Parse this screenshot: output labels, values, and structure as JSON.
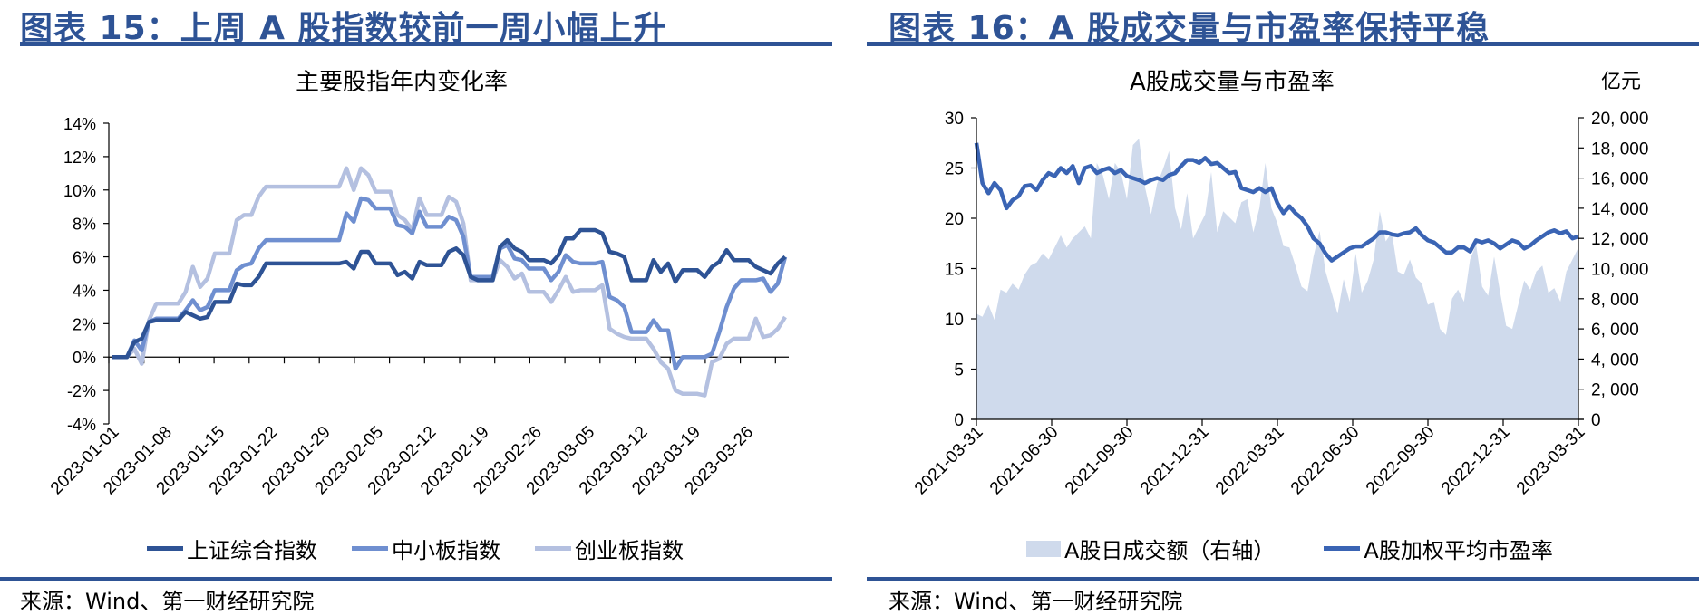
{
  "left": {
    "figure_title": "图表 15：上周 A 股指数较前一周小幅上升",
    "chart_title": "主要股指年内变化率",
    "source": "来源：Wind、第一财经研究院",
    "legend": [
      {
        "label": "上证综合指数",
        "color": "#2e5395"
      },
      {
        "label": "中小板指数",
        "color": "#6f8fd0"
      },
      {
        "label": "创业板指数",
        "color": "#b4c0e0"
      }
    ]
  },
  "right": {
    "figure_title": "图表 16：A 股成交量与市盈率保持平稳",
    "chart_title": "A股成交量与市盈率",
    "unit_label": "亿元",
    "source": "来源：Wind、第一财经研究院",
    "legend": [
      {
        "label": "A股日成交额（右轴）",
        "color": "#cfdaec",
        "kind": "area"
      },
      {
        "label": "A股加权平均市盈率",
        "color": "#3a64b4",
        "kind": "line"
      }
    ]
  },
  "chart_data": [
    {
      "type": "line",
      "title": "主要股指年内变化率",
      "xlabel": "",
      "ylabel": "",
      "ylim": [
        -0.04,
        0.14
      ],
      "yticks": [
        "14%",
        "12%",
        "10%",
        "8%",
        "6%",
        "4%",
        "2%",
        "0%",
        "-2%",
        "-4%"
      ],
      "x_tick_labels": [
        "2023-01-01",
        "2023-01-08",
        "2023-01-15",
        "2023-01-22",
        "2023-01-29",
        "2023-02-05",
        "2023-02-12",
        "2023-02-19",
        "2023-02-26",
        "2023-03-05",
        "2023-03-12",
        "2023-03-19",
        "2023-03-26"
      ],
      "legend_position": "bottom",
      "grid": false,
      "series": [
        {
          "name": "上证综合指数",
          "color": "#2e5395",
          "values": [
            0.0,
            0.0,
            0.0,
            0.009,
            0.011,
            0.021,
            0.022,
            0.022,
            0.022,
            0.022,
            0.027,
            0.025,
            0.023,
            0.024,
            0.033,
            0.033,
            0.033,
            0.044,
            0.043,
            0.043,
            0.048,
            0.056,
            0.056,
            0.056,
            0.056,
            0.056,
            0.056,
            0.056,
            0.056,
            0.056,
            0.056,
            0.056,
            0.057,
            0.053,
            0.063,
            0.063,
            0.056,
            0.056,
            0.056,
            0.049,
            0.051,
            0.047,
            0.057,
            0.055,
            0.055,
            0.055,
            0.063,
            0.065,
            0.061,
            0.048,
            0.046,
            0.046,
            0.046,
            0.066,
            0.07,
            0.065,
            0.063,
            0.058,
            0.058,
            0.058,
            0.056,
            0.061,
            0.071,
            0.071,
            0.076,
            0.076,
            0.076,
            0.074,
            0.063,
            0.062,
            0.06,
            0.046,
            0.046,
            0.046,
            0.058,
            0.051,
            0.056,
            0.045,
            0.052,
            0.052,
            0.052,
            0.048,
            0.054,
            0.057,
            0.064,
            0.058,
            0.058,
            0.058,
            0.054,
            0.052,
            0.05,
            0.056,
            0.06
          ]
        },
        {
          "name": "中小板指数",
          "color": "#6f8fd0",
          "values": [
            0.0,
            0.0,
            0.0,
            0.01,
            0.004,
            0.021,
            0.023,
            0.023,
            0.023,
            0.023,
            0.028,
            0.034,
            0.028,
            0.03,
            0.04,
            0.04,
            0.04,
            0.052,
            0.055,
            0.056,
            0.065,
            0.07,
            0.07,
            0.07,
            0.07,
            0.07,
            0.07,
            0.07,
            0.07,
            0.07,
            0.07,
            0.07,
            0.086,
            0.081,
            0.095,
            0.094,
            0.089,
            0.089,
            0.089,
            0.079,
            0.078,
            0.074,
            0.087,
            0.078,
            0.078,
            0.078,
            0.084,
            0.082,
            0.072,
            0.048,
            0.048,
            0.048,
            0.048,
            0.065,
            0.067,
            0.059,
            0.058,
            0.053,
            0.053,
            0.053,
            0.046,
            0.051,
            0.061,
            0.057,
            0.056,
            0.056,
            0.056,
            0.057,
            0.036,
            0.034,
            0.03,
            0.015,
            0.015,
            0.015,
            0.022,
            0.016,
            0.016,
            -0.007,
            0.0,
            0.0,
            0.0,
            0.0,
            0.002,
            0.015,
            0.03,
            0.041,
            0.046,
            0.046,
            0.046,
            0.047,
            0.039,
            0.044,
            0.06
          ]
        },
        {
          "name": "创业板指数",
          "color": "#b4c0e0",
          "values": [
            0.0,
            0.0,
            0.0,
            0.005,
            -0.004,
            0.022,
            0.032,
            0.032,
            0.032,
            0.032,
            0.039,
            0.054,
            0.042,
            0.047,
            0.062,
            0.062,
            0.062,
            0.082,
            0.085,
            0.085,
            0.096,
            0.102,
            0.102,
            0.102,
            0.102,
            0.102,
            0.102,
            0.102,
            0.102,
            0.102,
            0.102,
            0.102,
            0.113,
            0.1,
            0.113,
            0.109,
            0.099,
            0.099,
            0.099,
            0.085,
            0.082,
            0.076,
            0.095,
            0.085,
            0.085,
            0.085,
            0.096,
            0.093,
            0.08,
            0.046,
            0.046,
            0.046,
            0.046,
            0.058,
            0.054,
            0.047,
            0.05,
            0.039,
            0.039,
            0.039,
            0.033,
            0.04,
            0.048,
            0.039,
            0.04,
            0.04,
            0.04,
            0.043,
            0.017,
            0.014,
            0.012,
            0.011,
            0.011,
            0.011,
            0.005,
            -0.003,
            -0.007,
            -0.02,
            -0.022,
            -0.022,
            -0.022,
            -0.023,
            -0.003,
            -0.001,
            0.008,
            0.011,
            0.011,
            0.011,
            0.023,
            0.012,
            0.013,
            0.017,
            0.024
          ]
        }
      ]
    },
    {
      "type": "line",
      "subtype": "area+line dual-axis",
      "title": "A股成交量与市盈率",
      "xlabel": "",
      "ylabel_left": "市盈率",
      "ylabel_right": "亿元",
      "ylim_left": [
        0,
        30
      ],
      "ylim_right": [
        0,
        20000
      ],
      "yticks_left": [
        "30",
        "25",
        "20",
        "15",
        "10",
        "5",
        "0"
      ],
      "yticks_right": [
        "20, 000",
        "18, 000",
        "16, 000",
        "14, 000",
        "12, 000",
        "10, 000",
        "8, 000",
        "6, 000",
        "4, 000",
        "2, 000",
        "0"
      ],
      "x_tick_labels": [
        "2021-03-31",
        "2021-06-30",
        "2021-09-30",
        "2021-12-31",
        "2022-03-31",
        "2022-06-30",
        "2022-09-30",
        "2022-12-31",
        "2023-03-31"
      ],
      "legend_position": "bottom",
      "grid": false,
      "series": [
        {
          "name": "A股日成交额（右轴）",
          "axis": "right",
          "kind": "area",
          "color": "#cfdaec",
          "values": [
            7000,
            6800,
            7600,
            6600,
            8600,
            8400,
            9000,
            8600,
            9600,
            10200,
            10400,
            11000,
            10600,
            11400,
            12200,
            11400,
            12000,
            12400,
            12800,
            12000,
            17000,
            16200,
            14600,
            17000,
            16400,
            14600,
            18200,
            18600,
            15400,
            13600,
            15600,
            16600,
            17800,
            14000,
            12600,
            15000,
            12000,
            12800,
            13600,
            16400,
            12400,
            13800,
            13400,
            13000,
            14400,
            14600,
            12400,
            14000,
            17000,
            14000,
            13000,
            11500,
            11400,
            10200,
            8800,
            8500,
            10800,
            12500,
            9800,
            8400,
            7000,
            9300,
            7800,
            11000,
            8400,
            9200,
            10600,
            13800,
            11800,
            12400,
            9800,
            9600,
            10600,
            9400,
            9000,
            7600,
            7800,
            6000,
            5600,
            8000,
            8600,
            7800,
            10600,
            11600,
            8800,
            8200,
            10800,
            8400,
            6200,
            6000,
            7600,
            9200,
            8600,
            9800,
            10200,
            8400,
            8700,
            7800,
            9800,
            10600,
            11400
          ]
        },
        {
          "name": "A股加权平均市盈率",
          "axis": "left",
          "kind": "line",
          "color": "#3a64b4",
          "values": [
            27.5,
            23.5,
            22.5,
            23.5,
            22.8,
            21.0,
            21.8,
            22.2,
            23.2,
            23.3,
            22.8,
            23.8,
            24.5,
            24.2,
            25.0,
            24.5,
            25.2,
            23.5,
            25.0,
            25.2,
            24.5,
            24.8,
            25.0,
            24.5,
            24.8,
            24.2,
            24.0,
            23.8,
            23.5,
            23.8,
            24.0,
            23.8,
            24.3,
            24.5,
            25.2,
            25.8,
            25.8,
            25.5,
            26.0,
            25.4,
            25.5,
            25.0,
            24.5,
            24.6,
            23.0,
            22.8,
            22.6,
            23.0,
            22.6,
            23.0,
            21.5,
            20.5,
            21.2,
            20.5,
            20.0,
            19.2,
            18.0,
            17.5,
            16.5,
            15.8,
            16.2,
            16.6,
            17.0,
            17.2,
            17.2,
            17.6,
            18.0,
            18.6,
            18.6,
            18.4,
            18.3,
            18.5,
            18.6,
            19.0,
            18.3,
            17.8,
            17.6,
            17.1,
            16.6,
            16.6,
            17.1,
            17.1,
            16.7,
            17.8,
            17.6,
            17.8,
            17.5,
            17.0,
            17.4,
            17.8,
            17.6,
            17.0,
            17.3,
            17.8,
            18.2,
            18.6,
            18.8,
            18.5,
            18.7,
            18.0,
            18.2
          ]
        }
      ]
    }
  ]
}
